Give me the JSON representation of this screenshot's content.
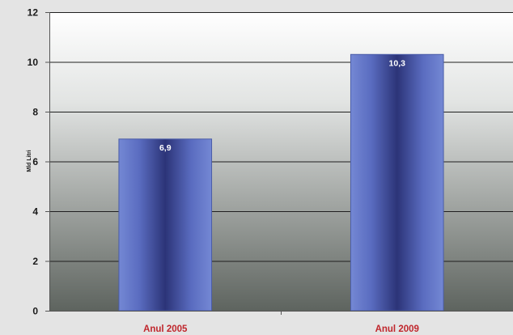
{
  "chart_data": {
    "type": "bar",
    "categories": [
      "Anul 2005",
      "Anul 2009"
    ],
    "values": [
      6.9,
      10.3
    ],
    "data_labels": [
      "6,9",
      "10,3"
    ],
    "title": "",
    "xlabel": "",
    "ylabel": "Mld Litri",
    "ylim": [
      0,
      12
    ],
    "yticks": [
      0,
      2,
      4,
      6,
      8,
      10,
      12
    ],
    "ytick_labels": [
      "0",
      "2",
      "4",
      "6",
      "8",
      "10",
      "12"
    ],
    "grid": true,
    "legend": "none"
  },
  "colors": {
    "page_background": "#e4e4e4",
    "plot_top": "#ffffff",
    "plot_bottom": "#5e645f",
    "bar_edge": "#4a5ca8",
    "bar_light": "#7488d4",
    "bar_dark": "#2c3478",
    "category_label": "#c0262c",
    "gridline": "#1f1f1f"
  }
}
